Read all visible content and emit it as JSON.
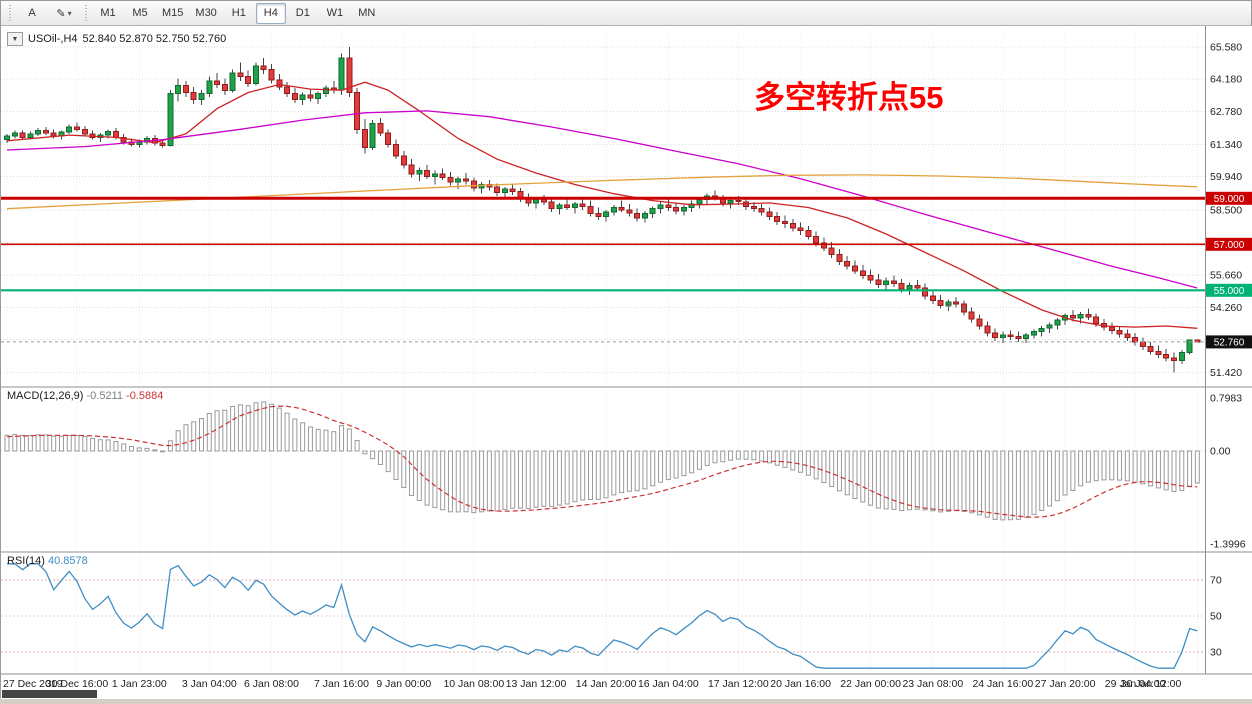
{
  "ui": {
    "toolbar": {
      "tools": [
        {
          "label": "A"
        },
        {
          "label": "✎",
          "chevron": "▾"
        }
      ],
      "timeframes": [
        "M1",
        "M5",
        "M15",
        "M30",
        "H1",
        "H4",
        "D1",
        "W1",
        "MN"
      ],
      "active_timeframe": "H4"
    },
    "header": {
      "symbol": "USOil-,H4",
      "ohlc": "52.840 52.870 52.750 52.760"
    },
    "macd_header": {
      "name": "MACD(12,26,9)",
      "main": "-0.5211",
      "signal": "-0.5884"
    },
    "rsi_header": {
      "name": "RSI(14)",
      "value": "40.8578"
    }
  },
  "chart_data": {
    "type": "candlestick",
    "symbol": "USOil-",
    "timeframe": "H4",
    "annotation": {
      "text": "多空转折点55",
      "color": "#ff0000"
    },
    "colors": {
      "up": "#1fa24a",
      "up_border": "#0c6b30",
      "down": "#e23b3b",
      "down_border": "#8f1d1d"
    },
    "price_axis": {
      "labels": [
        "65.580",
        "64.180",
        "62.780",
        "61.340",
        "59.940",
        "58.500",
        "55.660",
        "54.260",
        "51.420"
      ],
      "extra_gridlines": [
        57.06,
        52.86
      ]
    },
    "levels": [
      {
        "price": 59.0,
        "label": "59.000",
        "color": "#cc0000",
        "width": 3
      },
      {
        "price": 57.0,
        "label": "57.000",
        "color": "#cc0000",
        "width": 1.6
      },
      {
        "price": 55.0,
        "label": "55.000",
        "color": "#00b273",
        "width": 2.2
      }
    ],
    "current_price": {
      "value": 52.76,
      "label": "52.760",
      "badge_color": "#101010"
    },
    "markers": [
      {
        "index": 121,
        "price": 54.32,
        "glyph": "+"
      },
      {
        "index": 123,
        "price": 54.22,
        "glyph": "+"
      }
    ],
    "time_labels": [
      "27 Dec 2019",
      "30 Dec 16:00",
      "1 Jan 23:00",
      "3 Jan 04:00",
      "6 Jan 08:00",
      "7 Jan 16:00",
      "9 Jan 00:00",
      "10 Jan 08:00",
      "13 Jan 12:00",
      "14 Jan 20:00",
      "16 Jan 04:00",
      "17 Jan 12:00",
      "20 Jan 16:00",
      "22 Jan 00:00",
      "23 Jan 08:00",
      "24 Jan 16:00",
      "27 Jan 20:00",
      "29 Jan 04:00",
      "30 Jan 12:00"
    ],
    "candles": [
      [
        61.55,
        61.8,
        61.4,
        61.72
      ],
      [
        61.72,
        61.95,
        61.6,
        61.85
      ],
      [
        61.85,
        61.95,
        61.55,
        61.65
      ],
      [
        61.65,
        61.9,
        61.55,
        61.8
      ],
      [
        61.8,
        62.05,
        61.7,
        61.95
      ],
      [
        61.95,
        62.1,
        61.75,
        61.85
      ],
      [
        61.85,
        62.0,
        61.6,
        61.7
      ],
      [
        61.7,
        61.95,
        61.55,
        61.88
      ],
      [
        61.88,
        62.2,
        61.8,
        62.1
      ],
      [
        62.1,
        62.3,
        61.9,
        62.0
      ],
      [
        62.0,
        62.15,
        61.7,
        61.8
      ],
      [
        61.8,
        61.95,
        61.55,
        61.65
      ],
      [
        61.65,
        61.85,
        61.45,
        61.75
      ],
      [
        61.75,
        62.0,
        61.6,
        61.9
      ],
      [
        61.9,
        62.05,
        61.55,
        61.65
      ],
      [
        61.65,
        61.8,
        61.35,
        61.45
      ],
      [
        61.45,
        61.6,
        61.25,
        61.35
      ],
      [
        61.35,
        61.55,
        61.2,
        61.45
      ],
      [
        61.45,
        61.7,
        61.35,
        61.6
      ],
      [
        61.6,
        61.75,
        61.3,
        61.4
      ],
      [
        61.4,
        61.55,
        61.2,
        61.3
      ],
      [
        61.3,
        63.7,
        61.25,
        63.55
      ],
      [
        63.55,
        64.2,
        63.2,
        63.9
      ],
      [
        63.9,
        64.1,
        63.4,
        63.6
      ],
      [
        63.6,
        63.85,
        63.1,
        63.3
      ],
      [
        63.3,
        63.7,
        63.05,
        63.55
      ],
      [
        63.55,
        64.3,
        63.4,
        64.1
      ],
      [
        64.1,
        64.45,
        63.8,
        63.95
      ],
      [
        63.95,
        64.2,
        63.5,
        63.7
      ],
      [
        63.7,
        64.6,
        63.6,
        64.45
      ],
      [
        64.45,
        64.9,
        64.1,
        64.3
      ],
      [
        64.3,
        64.55,
        63.85,
        64.0
      ],
      [
        64.0,
        64.9,
        63.9,
        64.75
      ],
      [
        64.75,
        65.1,
        64.4,
        64.6
      ],
      [
        64.6,
        64.85,
        64.0,
        64.15
      ],
      [
        64.15,
        64.4,
        63.7,
        63.85
      ],
      [
        63.85,
        64.05,
        63.4,
        63.55
      ],
      [
        63.55,
        63.8,
        63.15,
        63.3
      ],
      [
        63.3,
        63.6,
        63.05,
        63.5
      ],
      [
        63.5,
        63.75,
        63.2,
        63.35
      ],
      [
        63.35,
        63.65,
        63.1,
        63.55
      ],
      [
        63.55,
        63.9,
        63.4,
        63.8
      ],
      [
        63.8,
        64.1,
        63.55,
        63.7
      ],
      [
        63.7,
        65.3,
        63.5,
        65.1
      ],
      [
        65.1,
        65.58,
        63.4,
        63.6
      ],
      [
        63.6,
        63.8,
        61.8,
        62.0
      ],
      [
        62.0,
        62.45,
        60.95,
        61.2
      ],
      [
        61.2,
        62.4,
        61.1,
        62.25
      ],
      [
        62.25,
        62.5,
        61.7,
        61.85
      ],
      [
        61.85,
        62.0,
        61.2,
        61.35
      ],
      [
        61.35,
        61.55,
        60.7,
        60.85
      ],
      [
        60.85,
        61.05,
        60.3,
        60.45
      ],
      [
        60.45,
        60.7,
        59.9,
        60.05
      ],
      [
        60.05,
        60.35,
        59.75,
        60.2
      ],
      [
        60.2,
        60.45,
        59.85,
        59.95
      ],
      [
        59.95,
        60.2,
        59.6,
        60.05
      ],
      [
        60.05,
        60.3,
        59.8,
        59.9
      ],
      [
        59.9,
        60.15,
        59.55,
        59.7
      ],
      [
        59.7,
        59.95,
        59.4,
        59.85
      ],
      [
        59.85,
        60.1,
        59.6,
        59.75
      ],
      [
        59.75,
        59.9,
        59.3,
        59.45
      ],
      [
        59.45,
        59.7,
        59.2,
        59.6
      ],
      [
        59.6,
        59.8,
        59.35,
        59.5
      ],
      [
        59.5,
        59.65,
        59.1,
        59.25
      ],
      [
        59.25,
        59.5,
        59.0,
        59.4
      ],
      [
        59.4,
        59.6,
        59.15,
        59.3
      ],
      [
        59.3,
        59.45,
        58.85,
        59.0
      ],
      [
        59.0,
        59.2,
        58.65,
        58.8
      ],
      [
        58.8,
        59.05,
        58.55,
        58.95
      ],
      [
        58.95,
        59.15,
        58.7,
        58.85
      ],
      [
        58.85,
        59.0,
        58.4,
        58.55
      ],
      [
        58.55,
        58.8,
        58.3,
        58.7
      ],
      [
        58.7,
        58.95,
        58.5,
        58.6
      ],
      [
        58.6,
        58.85,
        58.35,
        58.75
      ],
      [
        58.75,
        59.0,
        58.5,
        58.65
      ],
      [
        58.65,
        58.9,
        58.2,
        58.35
      ],
      [
        58.35,
        58.6,
        58.05,
        58.2
      ],
      [
        58.2,
        58.5,
        58.0,
        58.4
      ],
      [
        58.4,
        58.7,
        58.25,
        58.6
      ],
      [
        58.6,
        58.9,
        58.4,
        58.5
      ],
      [
        58.5,
        58.75,
        58.2,
        58.35
      ],
      [
        58.35,
        58.55,
        58.0,
        58.15
      ],
      [
        58.15,
        58.45,
        57.95,
        58.35
      ],
      [
        58.35,
        58.65,
        58.15,
        58.55
      ],
      [
        58.55,
        58.85,
        58.35,
        58.7
      ],
      [
        58.7,
        58.95,
        58.45,
        58.6
      ],
      [
        58.6,
        58.8,
        58.3,
        58.45
      ],
      [
        58.45,
        58.7,
        58.25,
        58.6
      ],
      [
        58.6,
        58.9,
        58.4,
        58.75
      ],
      [
        58.75,
        59.05,
        58.55,
        58.95
      ],
      [
        58.95,
        59.2,
        58.7,
        59.1
      ],
      [
        59.1,
        59.35,
        58.9,
        59.0
      ],
      [
        59.0,
        59.15,
        58.65,
        58.8
      ],
      [
        58.8,
        59.0,
        58.55,
        58.9
      ],
      [
        58.9,
        59.1,
        58.7,
        58.85
      ],
      [
        58.85,
        59.0,
        58.5,
        58.65
      ],
      [
        58.65,
        58.85,
        58.4,
        58.55
      ],
      [
        58.55,
        58.75,
        58.25,
        58.4
      ],
      [
        58.4,
        58.6,
        58.05,
        58.2
      ],
      [
        58.2,
        58.4,
        57.85,
        58.0
      ],
      [
        58.0,
        58.25,
        57.7,
        57.9
      ],
      [
        57.9,
        58.1,
        57.55,
        57.7
      ],
      [
        57.7,
        57.95,
        57.4,
        57.6
      ],
      [
        57.6,
        57.8,
        57.2,
        57.35
      ],
      [
        57.35,
        57.55,
        56.9,
        57.05
      ],
      [
        57.05,
        57.3,
        56.7,
        56.85
      ],
      [
        56.85,
        57.1,
        56.4,
        56.55
      ],
      [
        56.55,
        56.8,
        56.1,
        56.25
      ],
      [
        56.25,
        56.5,
        55.9,
        56.05
      ],
      [
        56.05,
        56.3,
        55.7,
        55.85
      ],
      [
        55.85,
        56.1,
        55.5,
        55.65
      ],
      [
        55.65,
        55.9,
        55.3,
        55.45
      ],
      [
        55.45,
        55.7,
        55.1,
        55.25
      ],
      [
        55.25,
        55.55,
        54.95,
        55.4
      ],
      [
        55.4,
        55.65,
        55.15,
        55.3
      ],
      [
        55.3,
        55.5,
        54.9,
        55.05
      ],
      [
        55.05,
        55.35,
        54.8,
        55.2
      ],
      [
        55.2,
        55.45,
        54.95,
        55.1
      ],
      [
        55.1,
        55.3,
        54.6,
        54.75
      ],
      [
        54.75,
        55.0,
        54.4,
        54.55
      ],
      [
        54.55,
        54.8,
        54.2,
        54.35
      ],
      [
        54.35,
        54.6,
        54.1,
        54.5
      ],
      [
        54.5,
        54.7,
        54.25,
        54.4
      ],
      [
        54.4,
        54.55,
        53.9,
        54.05
      ],
      [
        54.05,
        54.25,
        53.6,
        53.75
      ],
      [
        53.75,
        53.95,
        53.3,
        53.45
      ],
      [
        53.45,
        53.65,
        53.0,
        53.15
      ],
      [
        53.15,
        53.35,
        52.8,
        52.95
      ],
      [
        52.95,
        53.2,
        52.7,
        53.05
      ],
      [
        53.05,
        53.25,
        52.85,
        53.0
      ],
      [
        53.0,
        53.2,
        52.75,
        52.9
      ],
      [
        52.9,
        53.15,
        52.7,
        53.05
      ],
      [
        53.05,
        53.3,
        52.9,
        53.2
      ],
      [
        53.2,
        53.45,
        53.0,
        53.35
      ],
      [
        53.35,
        53.6,
        53.15,
        53.5
      ],
      [
        53.5,
        53.8,
        53.3,
        53.7
      ],
      [
        53.7,
        54.0,
        53.5,
        53.9
      ],
      [
        53.9,
        54.15,
        53.65,
        53.8
      ],
      [
        53.8,
        54.05,
        53.55,
        53.95
      ],
      [
        53.95,
        54.2,
        53.7,
        53.85
      ],
      [
        53.85,
        54.0,
        53.4,
        53.55
      ],
      [
        53.55,
        53.75,
        53.25,
        53.4
      ],
      [
        53.4,
        53.6,
        53.1,
        53.25
      ],
      [
        53.25,
        53.45,
        52.95,
        53.1
      ],
      [
        53.1,
        53.3,
        52.8,
        52.95
      ],
      [
        52.95,
        53.15,
        52.6,
        52.75
      ],
      [
        52.75,
        52.95,
        52.4,
        52.55
      ],
      [
        52.55,
        52.75,
        52.2,
        52.35
      ],
      [
        52.35,
        52.6,
        52.05,
        52.2
      ],
      [
        52.2,
        52.45,
        51.9,
        52.05
      ],
      [
        52.05,
        52.3,
        51.42,
        51.95
      ],
      [
        51.95,
        52.4,
        51.8,
        52.3
      ],
      [
        52.3,
        52.85,
        52.2,
        52.84
      ],
      [
        52.84,
        52.87,
        52.75,
        52.76
      ]
    ],
    "ma_lines": [
      {
        "name": "ma-fast-red",
        "color": "#cc2222",
        "points": [
          [
            0,
            61.5
          ],
          [
            8,
            61.75
          ],
          [
            14,
            61.65
          ],
          [
            19,
            61.42
          ],
          [
            23,
            61.8
          ],
          [
            27,
            62.9
          ],
          [
            31,
            63.6
          ],
          [
            35,
            63.95
          ],
          [
            39,
            63.75
          ],
          [
            43,
            63.7
          ],
          [
            46,
            64.05
          ],
          [
            49,
            63.7
          ],
          [
            53,
            62.8
          ],
          [
            58,
            61.6
          ],
          [
            63,
            60.7
          ],
          [
            68,
            60.1
          ],
          [
            73,
            59.6
          ],
          [
            78,
            59.2
          ],
          [
            83,
            58.9
          ],
          [
            88,
            58.72
          ],
          [
            93,
            58.75
          ],
          [
            98,
            58.8
          ],
          [
            103,
            58.6
          ],
          [
            108,
            58.15
          ],
          [
            113,
            57.45
          ],
          [
            118,
            56.65
          ],
          [
            123,
            55.85
          ],
          [
            128,
            54.95
          ],
          [
            133,
            54.15
          ],
          [
            137,
            53.7
          ],
          [
            141,
            53.45
          ],
          [
            145,
            53.4
          ],
          [
            149,
            53.45
          ],
          [
            153,
            53.35
          ]
        ]
      },
      {
        "name": "ma-mid-magenta",
        "color": "#cc00cc",
        "points": [
          [
            0,
            61.1
          ],
          [
            10,
            61.25
          ],
          [
            20,
            61.55
          ],
          [
            30,
            62.0
          ],
          [
            38,
            62.4
          ],
          [
            46,
            62.72
          ],
          [
            54,
            62.8
          ],
          [
            62,
            62.55
          ],
          [
            70,
            62.1
          ],
          [
            78,
            61.6
          ],
          [
            86,
            61.05
          ],
          [
            94,
            60.5
          ],
          [
            102,
            59.85
          ],
          [
            110,
            59.1
          ],
          [
            118,
            58.3
          ],
          [
            126,
            57.55
          ],
          [
            134,
            56.8
          ],
          [
            142,
            56.05
          ],
          [
            148,
            55.55
          ],
          [
            153,
            55.1
          ]
        ]
      },
      {
        "name": "ma-slow-orange",
        "color": "#e6a13c",
        "points": [
          [
            0,
            58.55
          ],
          [
            15,
            58.8
          ],
          [
            30,
            59.05
          ],
          [
            45,
            59.3
          ],
          [
            60,
            59.55
          ],
          [
            75,
            59.75
          ],
          [
            90,
            59.92
          ],
          [
            100,
            60.0
          ],
          [
            110,
            60.02
          ],
          [
            120,
            59.97
          ],
          [
            130,
            59.87
          ],
          [
            140,
            59.7
          ],
          [
            148,
            59.57
          ],
          [
            153,
            59.5
          ]
        ]
      }
    ],
    "indicators": {
      "macd": {
        "fast": 12,
        "slow": 26,
        "signal": 9,
        "range": [
          -1.3996,
          0.7983
        ],
        "axis": [
          "0.7983",
          "0.00",
          "-1.3996"
        ]
      },
      "rsi": {
        "period": 14,
        "levels": [
          70,
          50,
          30
        ],
        "axis": [
          "70",
          "50",
          "30"
        ]
      }
    }
  }
}
